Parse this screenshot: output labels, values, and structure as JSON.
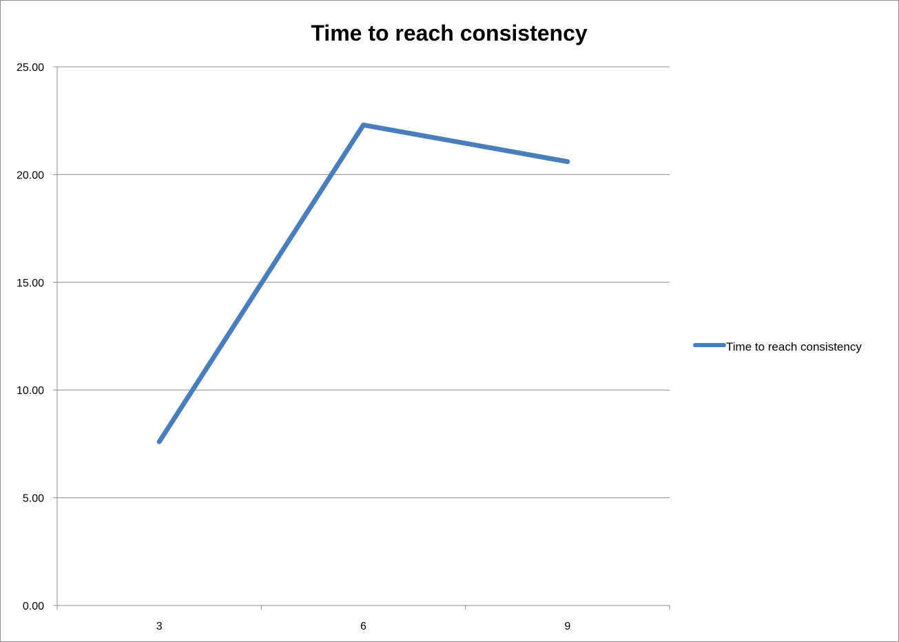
{
  "chart_data": {
    "type": "line",
    "title": "Time to reach consistency",
    "xlabel": "",
    "ylabel": "",
    "categories": [
      "3",
      "6",
      "9"
    ],
    "y_tick_labels": [
      "0.00",
      "5.00",
      "10.00",
      "15.00",
      "20.00",
      "25.00"
    ],
    "ylim": [
      0,
      25
    ],
    "grid": true,
    "legend_position": "right",
    "series": [
      {
        "name": "Time to reach consistency",
        "values": [
          7.6,
          22.3,
          20.6
        ],
        "color": "#4a7ebb"
      }
    ]
  }
}
